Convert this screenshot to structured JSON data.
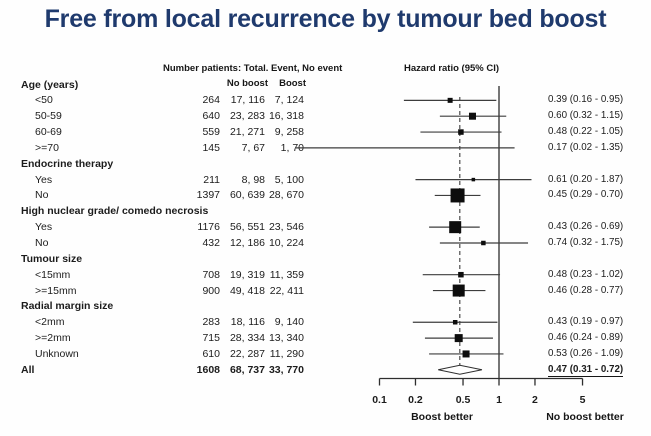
{
  "chart_data": {
    "type": "forest",
    "title": "Free from local recurrence by tumour bed boost",
    "numbers_header": "Number patients: Total. Event, No event",
    "plot_header": "Hazard ratio (95% CI)",
    "subheaders": [
      "No boost",
      "Boost"
    ],
    "x_scale": "log",
    "x_ticks": [
      0.1,
      0.2,
      0.5,
      1,
      2,
      5
    ],
    "x_range": [
      0.1,
      5
    ],
    "reference_line": 1,
    "overall_dashed_line": 0.47,
    "axis_label_left": "Boost better",
    "axis_label_right": "No boost better",
    "colors": {
      "title": "#1f3a6d",
      "text": "#1c1c1c",
      "line": "#3d3d3d",
      "marker": "#0d0d0d"
    },
    "rows": [
      {
        "kind": "group",
        "label": "Age (years)"
      },
      {
        "kind": "item",
        "label": "<50",
        "total": "264",
        "no_boost": "17, 116",
        "boost": "7, 124",
        "hr": 0.39,
        "lo": 0.16,
        "hi": 0.95,
        "hr_text": "0.39 (0.16 - 0.95)",
        "size": 5
      },
      {
        "kind": "item",
        "label": "50-59",
        "total": "640",
        "no_boost": "23, 283",
        "boost": "16, 318",
        "hr": 0.6,
        "lo": 0.32,
        "hi": 1.15,
        "hr_text": "0.60 (0.32 - 1.15)",
        "size": 7
      },
      {
        "kind": "item",
        "label": "60-69",
        "total": "559",
        "no_boost": "21, 271",
        "boost": "9, 258",
        "hr": 0.48,
        "lo": 0.22,
        "hi": 1.05,
        "hr_text": "0.48 (0.22 - 1.05)",
        "size": 5.5
      },
      {
        "kind": "item",
        "label": ">=70",
        "total": "145",
        "no_boost": "7, 67",
        "boost": "1, 70",
        "hr": 0.17,
        "lo": 0.02,
        "hi": 1.35,
        "hr_text": "0.17 (0.02 - 1.35)",
        "size": 0
      },
      {
        "kind": "group",
        "label": "Endocrine therapy"
      },
      {
        "kind": "item",
        "label": "Yes",
        "total": "211",
        "no_boost": "8, 98",
        "boost": "5, 100",
        "hr": 0.61,
        "lo": 0.2,
        "hi": 1.87,
        "hr_text": "0.61 (0.20 - 1.87)",
        "size": 3.5
      },
      {
        "kind": "item",
        "label": "No",
        "total": "1397",
        "no_boost": "60, 639",
        "boost": "28, 670",
        "hr": 0.45,
        "lo": 0.29,
        "hi": 0.7,
        "hr_text": "0.45 (0.29 - 0.70)",
        "size": 14
      },
      {
        "kind": "group",
        "label": "High nuclear grade/ comedo necrosis"
      },
      {
        "kind": "item",
        "label": "Yes",
        "total": "1176",
        "no_boost": "56, 551",
        "boost": "23, 546",
        "hr": 0.43,
        "lo": 0.26,
        "hi": 0.69,
        "hr_text": "0.43 (0.26 - 0.69)",
        "size": 12
      },
      {
        "kind": "item",
        "label": "No",
        "total": "432",
        "no_boost": "12, 186",
        "boost": "10, 224",
        "hr": 0.74,
        "lo": 0.32,
        "hi": 1.75,
        "hr_text": "0.74 (0.32 - 1.75)",
        "size": 4.5
      },
      {
        "kind": "group",
        "label": "Tumour size"
      },
      {
        "kind": "item",
        "label": "<15mm",
        "total": "708",
        "no_boost": "19, 319",
        "boost": "11, 359",
        "hr": 0.48,
        "lo": 0.23,
        "hi": 1.02,
        "hr_text": "0.48 (0.23 - 1.02)",
        "size": 5.5
      },
      {
        "kind": "item",
        "label": ">=15mm",
        "total": "900",
        "no_boost": "49, 418",
        "boost": "22, 411",
        "hr": 0.46,
        "lo": 0.28,
        "hi": 0.77,
        "hr_text": "0.46 (0.28 - 0.77)",
        "size": 12
      },
      {
        "kind": "group",
        "label": "Radial margin size"
      },
      {
        "kind": "item",
        "label": "<2mm",
        "total": "283",
        "no_boost": "18, 116",
        "boost": "9, 140",
        "hr": 0.43,
        "lo": 0.19,
        "hi": 0.97,
        "hr_text": "0.43 (0.19 - 0.97)",
        "size": 4.5
      },
      {
        "kind": "item",
        "label": ">=2mm",
        "total": "715",
        "no_boost": "28, 334",
        "boost": "13, 340",
        "hr": 0.46,
        "lo": 0.24,
        "hi": 0.89,
        "hr_text": "0.46 (0.24 - 0.89)",
        "size": 8
      },
      {
        "kind": "item",
        "label": "Unknown",
        "total": "610",
        "no_boost": "22, 287",
        "boost": "11, 290",
        "hr": 0.53,
        "lo": 0.26,
        "hi": 1.09,
        "hr_text": "0.53 (0.26 - 1.09)",
        "size": 7
      },
      {
        "kind": "overall",
        "label": "All",
        "total": "1608",
        "no_boost": "68, 737",
        "boost": "33, 770",
        "hr": 0.47,
        "lo": 0.31,
        "hi": 0.72,
        "hr_text": "0.47 (0.31 - 0.72)"
      }
    ]
  }
}
